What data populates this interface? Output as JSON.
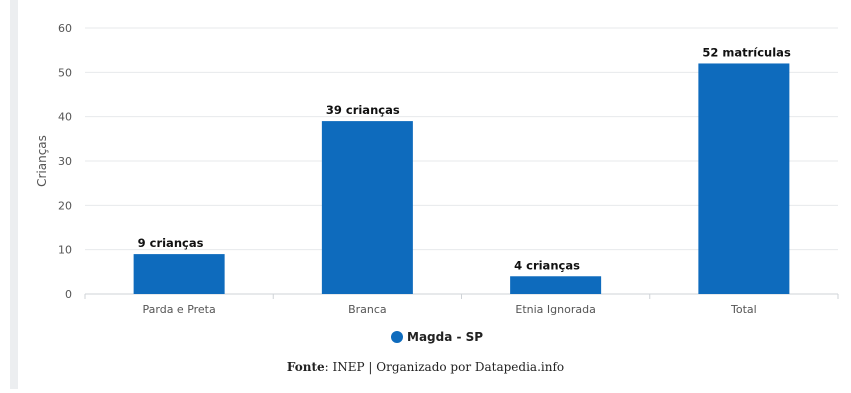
{
  "chart_data": {
    "type": "bar",
    "categories": [
      "Parda e Preta",
      "Branca",
      "Etnia Ignorada",
      "Total"
    ],
    "series": [
      {
        "name": "Magda - SP",
        "values": [
          9,
          39,
          4,
          52
        ]
      }
    ],
    "data_labels": [
      "9 crianças",
      "39 crianças",
      "4 crianças",
      "52 matrículas"
    ],
    "ylabel": "Crianças",
    "xlabel": "",
    "ylim": [
      0,
      60
    ],
    "yticks": [
      0,
      10,
      20,
      30,
      40,
      50,
      60
    ],
    "grid": true,
    "legend": "bottom",
    "bar_color": "#0e6bbd"
  },
  "source": {
    "label": "Fonte",
    "text": ": INEP | Organizado por Datapedia.info"
  }
}
